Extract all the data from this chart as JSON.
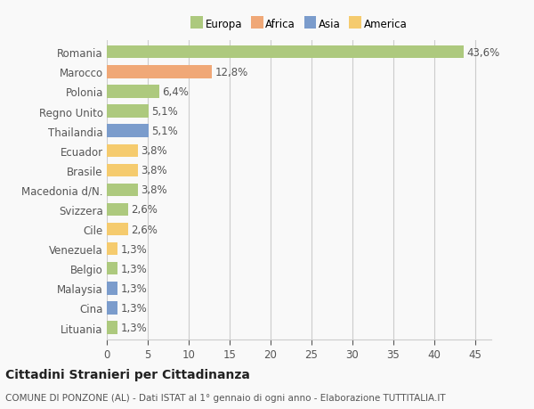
{
  "countries": [
    "Romania",
    "Marocco",
    "Polonia",
    "Regno Unito",
    "Thailandia",
    "Ecuador",
    "Brasile",
    "Macedonia d/N.",
    "Svizzera",
    "Cile",
    "Venezuela",
    "Belgio",
    "Malaysia",
    "Cina",
    "Lituania"
  ],
  "values": [
    43.6,
    12.8,
    6.4,
    5.1,
    5.1,
    3.8,
    3.8,
    3.8,
    2.6,
    2.6,
    1.3,
    1.3,
    1.3,
    1.3,
    1.3
  ],
  "labels": [
    "43,6%",
    "12,8%",
    "6,4%",
    "5,1%",
    "5,1%",
    "3,8%",
    "3,8%",
    "3,8%",
    "2,6%",
    "2,6%",
    "1,3%",
    "1,3%",
    "1,3%",
    "1,3%",
    "1,3%"
  ],
  "colors": [
    "#adc97e",
    "#f0a877",
    "#adc97e",
    "#adc97e",
    "#7b9ccc",
    "#f5cb6e",
    "#f5cb6e",
    "#adc97e",
    "#adc97e",
    "#f5cb6e",
    "#f5cb6e",
    "#adc97e",
    "#7b9ccc",
    "#7b9ccc",
    "#adc97e"
  ],
  "legend_labels": [
    "Europa",
    "Africa",
    "Asia",
    "America"
  ],
  "legend_colors": [
    "#adc97e",
    "#f0a877",
    "#7b9ccc",
    "#f5cb6e"
  ],
  "title": "Cittadini Stranieri per Cittadinanza",
  "subtitle": "COMUNE DI PONZONE (AL) - Dati ISTAT al 1° gennaio di ogni anno - Elaborazione TUTTITALIA.IT",
  "xlim": [
    0,
    47
  ],
  "xticks": [
    0,
    5,
    10,
    15,
    20,
    25,
    30,
    35,
    40,
    45
  ],
  "background_color": "#f9f9f9",
  "grid_color": "#cccccc",
  "bar_height": 0.65,
  "label_fontsize": 8.5,
  "tick_fontsize": 8.5,
  "title_fontsize": 10,
  "subtitle_fontsize": 7.5
}
